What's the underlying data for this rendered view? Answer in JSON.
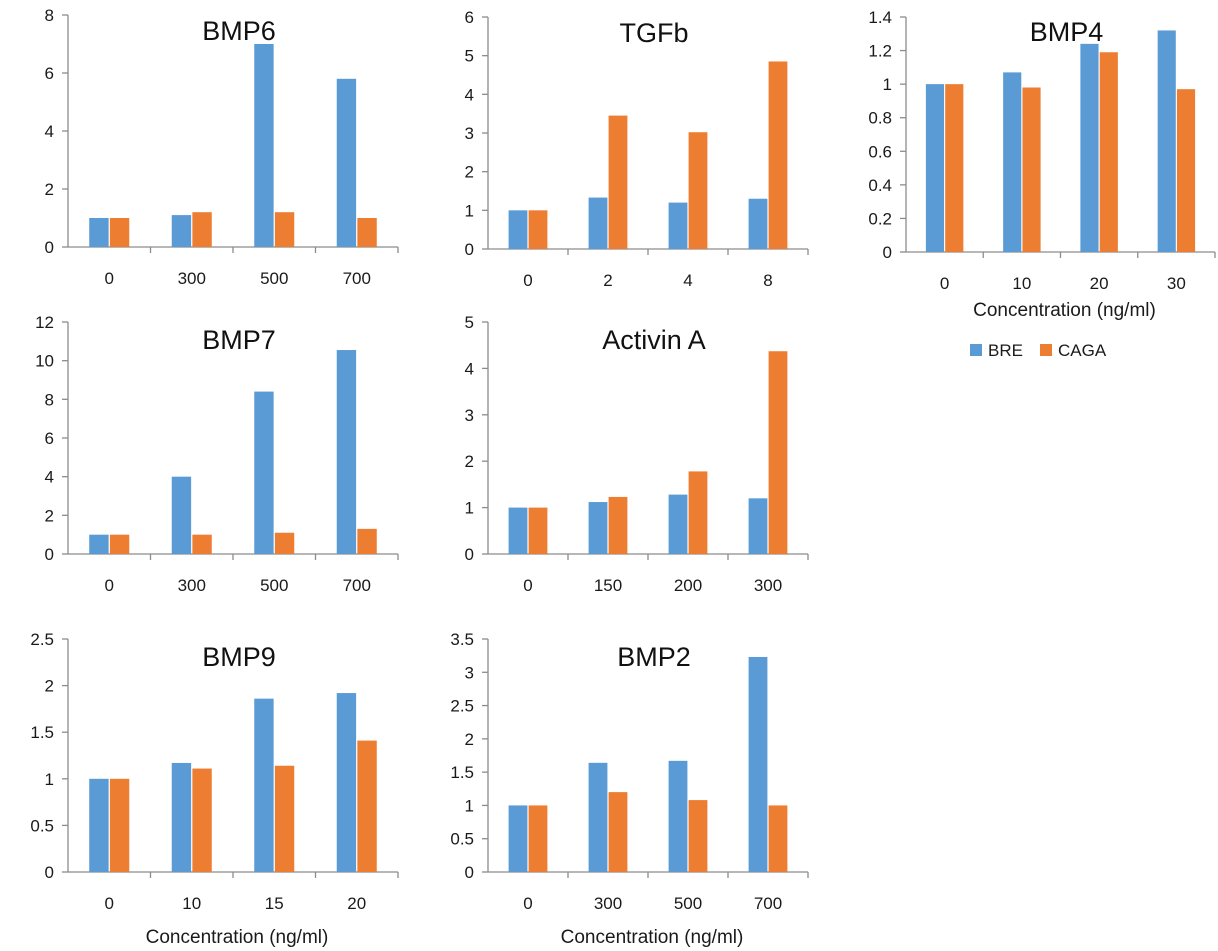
{
  "colors": {
    "BRE": "#5b9bd5",
    "CAGA": "#ed7d31"
  },
  "legend": {
    "placement": "below BMP4 chart",
    "items": [
      "BRE",
      "CAGA"
    ]
  },
  "chart_data": [
    {
      "type": "bar",
      "title": "BMP6",
      "xlabel": "",
      "categories": [
        "0",
        "300",
        "500",
        "700"
      ],
      "yticks": [
        "0",
        "2",
        "4",
        "6",
        "8"
      ],
      "ylim": [
        0,
        8
      ],
      "series": [
        {
          "name": "BRE",
          "values": [
            1.0,
            1.1,
            7.0,
            5.8
          ]
        },
        {
          "name": "CAGA",
          "values": [
            1.0,
            1.2,
            1.2,
            1.0
          ]
        }
      ]
    },
    {
      "type": "bar",
      "title": "TGFb",
      "xlabel": "",
      "categories": [
        "0",
        "2",
        "4",
        "8"
      ],
      "yticks": [
        "0",
        "1",
        "2",
        "3",
        "4",
        "5",
        "6"
      ],
      "ylim": [
        0,
        6
      ],
      "series": [
        {
          "name": "BRE",
          "values": [
            1.0,
            1.33,
            1.2,
            1.3
          ]
        },
        {
          "name": "CAGA",
          "values": [
            1.0,
            3.45,
            3.02,
            4.85
          ]
        }
      ]
    },
    {
      "type": "bar",
      "title": "BMP4",
      "xlabel": "Concentration (ng/ml)",
      "categories": [
        "0",
        "10",
        "20",
        "30"
      ],
      "yticks": [
        "0",
        "0.2",
        "0.4",
        "0.6",
        "0.8",
        "1",
        "1.2",
        "1.4"
      ],
      "ylim": [
        0,
        1.4
      ],
      "series": [
        {
          "name": "BRE",
          "values": [
            1.0,
            1.07,
            1.24,
            1.32
          ]
        },
        {
          "name": "CAGA",
          "values": [
            1.0,
            0.98,
            1.19,
            0.97
          ]
        }
      ]
    },
    {
      "type": "bar",
      "title": "BMP7",
      "xlabel": "",
      "categories": [
        "0",
        "300",
        "500",
        "700"
      ],
      "yticks": [
        "0",
        "2",
        "4",
        "6",
        "8",
        "10",
        "12"
      ],
      "ylim": [
        0,
        12
      ],
      "series": [
        {
          "name": "BRE",
          "values": [
            1.0,
            4.0,
            8.4,
            10.55
          ]
        },
        {
          "name": "CAGA",
          "values": [
            1.0,
            1.0,
            1.1,
            1.3
          ]
        }
      ]
    },
    {
      "type": "bar",
      "title": "Activin A",
      "xlabel": "",
      "categories": [
        "0",
        "150",
        "200",
        "300"
      ],
      "yticks": [
        "0",
        "1",
        "2",
        "3",
        "4",
        "5"
      ],
      "ylim": [
        0,
        5
      ],
      "series": [
        {
          "name": "BRE",
          "values": [
            1.0,
            1.12,
            1.28,
            1.2
          ]
        },
        {
          "name": "CAGA",
          "values": [
            1.0,
            1.23,
            1.78,
            4.37
          ]
        }
      ]
    },
    {
      "type": "bar",
      "title": "BMP9",
      "xlabel": "Concentration (ng/ml)",
      "categories": [
        "0",
        "10",
        "15",
        "20"
      ],
      "yticks": [
        "0",
        "0.5",
        "1",
        "1.5",
        "2",
        "2.5"
      ],
      "ylim": [
        0,
        2.5
      ],
      "series": [
        {
          "name": "BRE",
          "values": [
            1.0,
            1.17,
            1.86,
            1.92
          ]
        },
        {
          "name": "CAGA",
          "values": [
            1.0,
            1.11,
            1.14,
            1.41
          ]
        }
      ]
    },
    {
      "type": "bar",
      "title": "BMP2",
      "xlabel": "Concentration (ng/ml)",
      "categories": [
        "0",
        "300",
        "500",
        "700"
      ],
      "yticks": [
        "0",
        "0.5",
        "1",
        "1.5",
        "2",
        "2.5",
        "3",
        "3.5"
      ],
      "ylim": [
        0,
        3.5
      ],
      "series": [
        {
          "name": "BRE",
          "values": [
            1.0,
            1.64,
            1.67,
            3.23
          ]
        },
        {
          "name": "CAGA",
          "values": [
            1.0,
            1.2,
            1.08,
            1.0
          ]
        }
      ]
    }
  ]
}
